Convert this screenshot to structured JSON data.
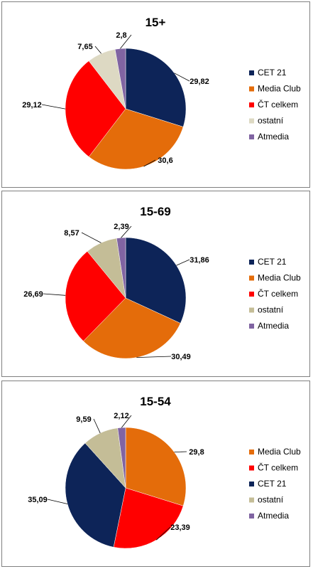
{
  "chart_data": [
    {
      "type": "pie",
      "title": "15+",
      "series": [
        {
          "name": "CET 21",
          "value": 29.82,
          "label": "29,82",
          "color": "#0d2458"
        },
        {
          "name": "Media Club",
          "value": 30.6,
          "label": "30,6",
          "color": "#e46c0a"
        },
        {
          "name": "ČT celkem",
          "value": 29.12,
          "label": "29,12",
          "color": "#ff0000"
        },
        {
          "name": "ostatní",
          "value": 7.65,
          "label": "7,65",
          "color": "#ddd9c3"
        },
        {
          "name": "Atmedia",
          "value": 2.8,
          "label": "2,8",
          "color": "#8064a2"
        }
      ],
      "legend_position": "right"
    },
    {
      "type": "pie",
      "title": "15-69",
      "series": [
        {
          "name": "CET 21",
          "value": 31.86,
          "label": "31,86",
          "color": "#0d2458"
        },
        {
          "name": "Media Club",
          "value": 30.49,
          "label": "30,49",
          "color": "#e46c0a"
        },
        {
          "name": "ČT celkem",
          "value": 26.69,
          "label": "26,69",
          "color": "#ff0000"
        },
        {
          "name": "ostatní",
          "value": 8.57,
          "label": "8,57",
          "color": "#c4bd97"
        },
        {
          "name": "Atmedia",
          "value": 2.39,
          "label": "2,39",
          "color": "#8064a2"
        }
      ],
      "legend_position": "right"
    },
    {
      "type": "pie",
      "title": "15-54",
      "series": [
        {
          "name": "Media Club",
          "value": 29.8,
          "label": "29,8",
          "color": "#e46c0a"
        },
        {
          "name": "ČT celkem",
          "value": 23.39,
          "label": "23,39",
          "color": "#ff0000"
        },
        {
          "name": "CET 21",
          "value": 35.09,
          "label": "35,09",
          "color": "#0d2458"
        },
        {
          "name": "ostatní",
          "value": 9.59,
          "label": "9,59",
          "color": "#c4bd97"
        },
        {
          "name": "Atmedia",
          "value": 2.12,
          "label": "2,12",
          "color": "#8064a2"
        }
      ],
      "legend_position": "right"
    }
  ]
}
